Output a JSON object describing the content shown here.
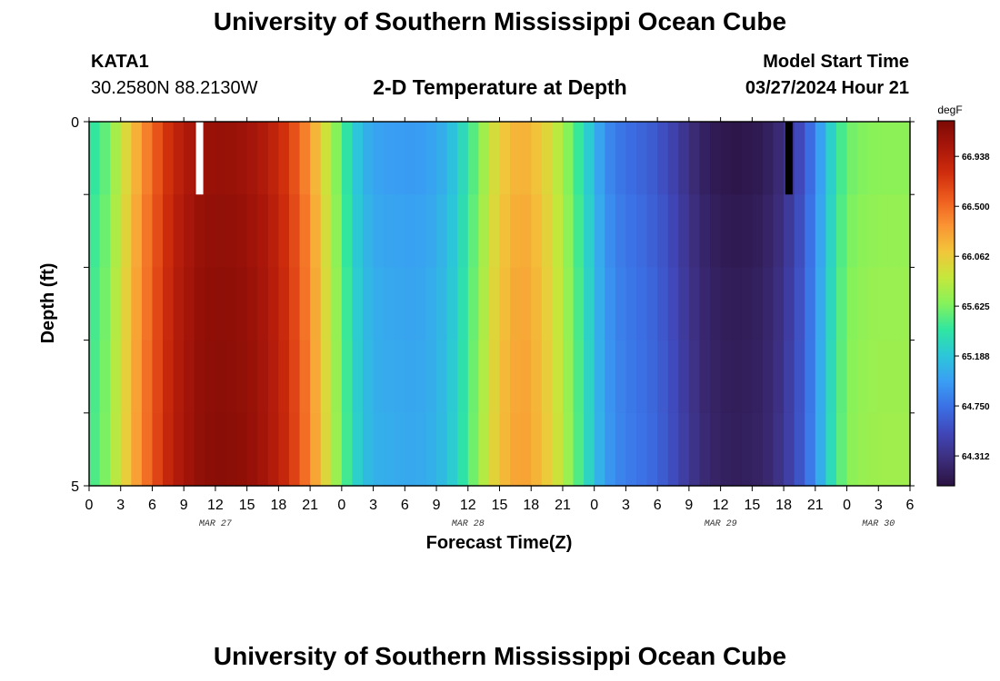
{
  "header": {
    "title": "University of Southern Mississippi Ocean Cube",
    "station": "KATA1",
    "coords": "30.2580N  88.2130W",
    "plot_title": "2-D Temperature at Depth",
    "start_label": "Model Start Time",
    "start_value": "03/27/2024 Hour 21"
  },
  "footer": {
    "title": "University of Southern Mississippi Ocean Cube"
  },
  "chart_data": {
    "type": "heatmap",
    "title": "2-D Temperature at Depth",
    "xlabel": "Forecast Time(Z)",
    "ylabel": "Depth (ft)",
    "x_start_hour": 0,
    "x_end_hour": 78,
    "x_tick_labels": [
      "0",
      "3",
      "6",
      "9",
      "12",
      "15",
      "18",
      "21",
      "0",
      "3",
      "6",
      "9",
      "12",
      "15",
      "18",
      "21",
      "0",
      "3",
      "6",
      "9",
      "12",
      "15",
      "18",
      "21",
      "0",
      "3",
      "6"
    ],
    "date_labels": [
      {
        "label": "MAR 27",
        "hour": 12
      },
      {
        "label": "MAR 28",
        "hour": 36
      },
      {
        "label": "MAR 29",
        "hour": 60
      },
      {
        "label": "MAR 30",
        "hour": 75
      }
    ],
    "ylim": [
      0,
      5
    ],
    "y_tick_labels": [
      "0",
      "5"
    ],
    "depth_bands": 5,
    "colorbar": {
      "unit": "degF",
      "ticks": [
        66.938,
        66.5,
        66.062,
        65.625,
        65.188,
        64.75,
        64.312
      ],
      "tick_labels": [
        "66.938",
        "66.500",
        "66.062",
        "65.625",
        "65.188",
        "64.750",
        "64.312"
      ],
      "min": 64.05,
      "max": 67.25,
      "colors": [
        "#2a1240",
        "#3c2d7a",
        "#4046b7",
        "#3b6fe4",
        "#3a9ef4",
        "#2cc7d9",
        "#30e6a0",
        "#86f25a",
        "#c6e73b",
        "#f2c53a",
        "#fa9333",
        "#ee5c1e",
        "#cf2d0c",
        "#a8160a",
        "#7c0a05"
      ]
    },
    "surface_series": [
      65.43,
      65.55,
      65.76,
      65.98,
      66.21,
      66.42,
      66.61,
      66.78,
      66.91,
      67.0,
      67.07,
      67.1,
      67.11,
      67.1,
      67.08,
      67.04,
      66.98,
      66.89,
      66.78,
      66.62,
      66.42,
      66.18,
      65.92,
      65.65,
      65.4,
      65.18,
      65.05,
      64.99,
      64.97,
      64.96,
      64.95,
      64.96,
      64.99,
      65.05,
      65.16,
      65.32,
      65.52,
      65.74,
      65.95,
      66.1,
      66.18,
      66.19,
      66.12,
      66.0,
      65.84,
      65.65,
      65.44,
      65.22,
      65.0,
      64.85,
      64.77,
      64.72,
      64.68,
      64.63,
      64.56,
      64.47,
      64.36,
      64.26,
      64.18,
      64.13,
      64.1,
      64.09,
      64.1,
      64.12,
      64.17,
      64.25,
      64.37,
      64.52,
      64.72,
      64.98,
      65.26,
      65.48,
      65.6,
      65.64,
      65.66,
      65.67,
      65.67,
      65.67
    ],
    "depth_offsets": [
      0.0,
      0.03,
      0.05,
      0.06,
      0.07
    ],
    "markers": [
      {
        "type": "max",
        "hour": 10.5,
        "color": "#ffffff"
      },
      {
        "type": "min",
        "hour": 66.5,
        "color": "#000000"
      }
    ]
  }
}
